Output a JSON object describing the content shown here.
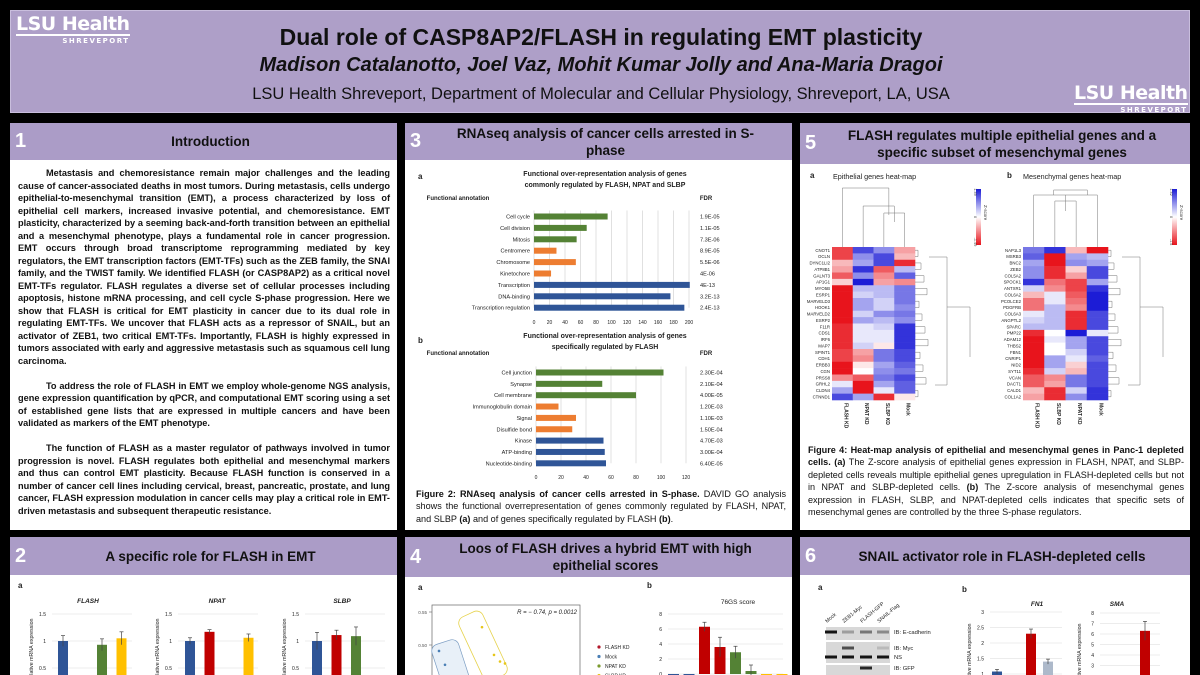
{
  "header": {
    "title": "Dual role of CASP8AP2/FLASH in regulating EMT plasticity",
    "first_author": "Madison Catalanotto",
    "other_authors": ", Joel Vaz, Mohit Kumar Jolly and Ana-Maria Dragoi",
    "affiliation": "LSU Health Shreveport, Department of Molecular and Cellular Physiology, Shreveport, LA, USA",
    "logo_text": "LSU Health",
    "logo_sub": "SHREVEPORT"
  },
  "s1": {
    "num": "1",
    "title": "Introduction",
    "paragraphs": [
      "Metastasis and chemoresistance remain major challenges and the leading cause of cancer-associated deaths in most tumors. During metastasis, cells undergo epithelial-to-mesenchymal transition (EMT), a process characterized by loss of epithelial cell markers, increased invasive potential, and chemoresistance. EMT plasticity, characterized by a seeming back-and-forth transition between an epithelial and a mesenchymal phenotype, plays a fundamental role in cancer progression. EMT occurs through broad transcriptome reprogramming mediated by key regulators, the EMT transcription factors (EMT-TFs) such as the ZEB family, the SNAI family, and the TWIST family. We identified FLASH (or CASP8AP2) as a critical novel EMT-TFs regulator. FLASH regulates a diverse set of cellular processes including apoptosis, histone mRNA processing, and cell cycle S-phase progression. Here we show that FLASH is critical for EMT plasticity in cancer due to its dual role in regulating EMT-TFs.  We uncover that FLASH acts as a repressor of SNAIL, but an activator of ZEB1, two critical EMT-TFs. Importantly, FLASH is highly expressed in tumors associated with early and aggressive metastasis such as squamous cell lung carcinoma.",
      "To address the role of FLASH in EMT we employ whole-genome NGS analysis, gene expression quantification by qPCR, and computational EMT scoring using a set of established gene lists that are expressed in multiple cancers and have been validated as markers of the EMT phenotype.",
      "The function of FLASH as a master regulator of pathways involved in tumor progression is novel. FLASH regulates both epithelial and mesenchymal markers and thus can control EMT plasticity. Because FLASH function is conserved in a number of cancer cell lines including cervical, breast, pancreatic, prostate, and lung cancer, FLASH expression modulation in cancer cells may play a critical role in EMT-driven metastasis and subsequent therapeutic resistance."
    ]
  },
  "s2": {
    "num": "2",
    "title": "A specific role for FLASH in EMT",
    "panel_a": "a"
  },
  "s3": {
    "num": "3",
    "title": "RNAseq analysis of cancer cells arrested in S-phase",
    "panel_a": "a",
    "panel_b": "b",
    "caption": [
      "Figure 2: RNAseq analysis of cancer cells arrested in S-phase.",
      " DAVID GO analysis shows the functional overrepresentation of genes commonly regulated by FLASH, NPAT, and SLBP ",
      "(a)",
      " and of genes specifically regulated by FLASH ",
      "(b)",
      "."
    ]
  },
  "s4": {
    "num": "4",
    "title": "Loos of FLASH drives a hybrid EMT with high epithelial scores",
    "panel_a": "a",
    "panel_b": "b"
  },
  "s5": {
    "num": "5",
    "title": "FLASH regulates multiple epithelial genes and a specific subset of mesenchymal genes",
    "panel_a": "a",
    "panel_b": "b",
    "caption": [
      "Figure 4: Heat-map analysis of epithelial and mesenchymal genes in Panc-1 depleted cells.",
      " ",
      "(a)",
      " The Z-score analysis of epithelial genes expression in FLASH, NPAT, and SLBP-depleted cells reveals multiple epithelial genes upregulation in FLASH-depleted cells but not in NPAT and SLBP-depleted cells. ",
      "(b)",
      " The Z-score analysis of mesenchymal genes expression in FLASH, SLBP, and NPAT-depleted cells indicates that specific sets of mesenchymal genes are controlled by the three S-phase regulators."
    ]
  },
  "s6": {
    "num": "6",
    "title": "SNAIL activator role in FLASH-depleted cells",
    "panel_a": "a",
    "panel_b": "b",
    "blot": {
      "lanes": [
        "Mock",
        "ZEB1-Myc",
        "FLASH-GFP",
        "SNAIL-Flag"
      ],
      "labels": [
        "IB: E-cadherin",
        "IB: Myc",
        "NS",
        "IB: GFP"
      ]
    }
  },
  "colors": {
    "blue": "#2f5597",
    "red": "#c00000",
    "green": "#548235",
    "yellow": "#ffc000",
    "orange": "#ed7d31",
    "lightblue": "#adb9ca",
    "hm_neg": "#e8141c",
    "hm_pos": "#1c1cd6"
  },
  "chart_data": [
    {
      "id": "fig2a",
      "type": "bar",
      "orientation": "horizontal",
      "title": [
        "Functional over-representation analysis of genes",
        "commonly regulated by FLASH, NPAT and SLBP"
      ],
      "ylabel": "Functional annotation",
      "fdr_label": "FDR",
      "categories": [
        "Cell cycle",
        "Cell division",
        "Mitosis",
        "Centromere",
        "Chromosome",
        "Kinetochore",
        "Transcription",
        "DNA-binding",
        "Transcription regulation"
      ],
      "values": [
        95,
        68,
        55,
        29,
        54,
        22,
        201,
        176,
        194
      ],
      "groups": [
        "green",
        "green",
        "green",
        "orange",
        "orange",
        "orange",
        "blue",
        "blue",
        "blue"
      ],
      "fdr": [
        "1.9E-05",
        "1.1E-05",
        "7.3E-06",
        "8.9E-05",
        "5.5E-06",
        "4E-06",
        "4E-13",
        "3.2E-13",
        "2.4E-13"
      ],
      "xlim": [
        0,
        200
      ],
      "xticks": [
        "0",
        "20",
        "40",
        "60",
        "80",
        "100",
        "120",
        "140",
        "160",
        "180",
        "200"
      ],
      "grid": true
    },
    {
      "id": "fig2b",
      "type": "bar",
      "orientation": "horizontal",
      "title": [
        "Functional over-representation analysis of genes",
        "specifically regulated by FLASH"
      ],
      "ylabel": "Functional annotation",
      "fdr_label": "FDR",
      "categories": [
        "Cell junction",
        "Synapse",
        "Cell membrane",
        "Immunoglobulin domain",
        "Signal",
        "Disulfide bond",
        "Kinase",
        "ATP-binding",
        "Nucleotide-binding"
      ],
      "values": [
        102,
        53,
        80,
        18,
        32,
        29,
        54,
        55,
        56
      ],
      "groups": [
        "green",
        "green",
        "green",
        "orange",
        "orange",
        "orange",
        "blue",
        "blue",
        "blue"
      ],
      "fdr": [
        "2.30E-04",
        "2.10E-04",
        "4.00E-05",
        "1.20E-03",
        "1.10E-03",
        "1.50E-04",
        "4.70E-03",
        "3.00E-04",
        "6.40E-05"
      ],
      "xlim": [
        0,
        120
      ],
      "xticks": [
        "0",
        "20",
        "40",
        "60",
        "80",
        "100",
        "120"
      ],
      "grid": true
    },
    {
      "id": "fig1_flash",
      "type": "bar",
      "title": "FLASH",
      "ylabel": "Relative mRNA expression",
      "yticks": [
        "1.5",
        "1",
        "0.5"
      ],
      "ylim": [
        0,
        1.5
      ],
      "series": [
        {
          "color": "blue",
          "value": 1.0,
          "err": 0.1
        },
        {
          "color": "red",
          "value": null
        },
        {
          "color": "green",
          "value": 0.93,
          "err": 0.11
        },
        {
          "color": "yellow",
          "value": 1.05,
          "err": 0.12
        }
      ]
    },
    {
      "id": "fig1_npat",
      "type": "bar",
      "title": "NPAT",
      "ylabel": "Relative mRNA expression",
      "yticks": [
        "1.5",
        "1",
        "0.5"
      ],
      "ylim": [
        0,
        1.5
      ],
      "series": [
        {
          "color": "blue",
          "value": 1.0,
          "err": 0.06
        },
        {
          "color": "red",
          "value": 1.17,
          "err": 0.04
        },
        {
          "color": "green",
          "value": null
        },
        {
          "color": "yellow",
          "value": 1.06,
          "err": 0.07
        }
      ]
    },
    {
      "id": "fig1_slbp",
      "type": "bar",
      "title": "SLBP",
      "ylabel": "Relative mRNA expression",
      "yticks": [
        "1.5",
        "1",
        "0.5"
      ],
      "ylim": [
        0,
        1.5
      ],
      "series": [
        {
          "color": "blue",
          "value": 1.0,
          "err": 0.16
        },
        {
          "color": "red",
          "value": 1.11,
          "err": 0.09
        },
        {
          "color": "green",
          "value": 1.09,
          "err": 0.17
        },
        {
          "color": "yellow",
          "value": null
        }
      ]
    },
    {
      "id": "fig3a",
      "type": "scatter",
      "annotation": "R = − 0.74, p = 0.0012",
      "yticks": [
        "0.55",
        "0.50"
      ],
      "legend": [
        {
          "label": "FLASH KD",
          "color": "#b2182b"
        },
        {
          "label": "Mock",
          "color": "#4a7fb5"
        },
        {
          "label": "NPAT KD",
          "color": "#7a9a2e"
        },
        {
          "label": "SLBP KD",
          "color": "#e6c619"
        }
      ],
      "points": [
        {
          "g": 1,
          "y": 0.491
        },
        {
          "g": 1,
          "y": 0.47
        },
        {
          "g": 3,
          "y": 0.527
        },
        {
          "g": 3,
          "y": 0.485
        },
        {
          "g": 3,
          "y": 0.475
        },
        {
          "g": 3,
          "y": 0.472
        }
      ]
    },
    {
      "id": "fig3b",
      "type": "bar",
      "title": "76GS score",
      "yticks": [
        "8",
        "6",
        "4",
        "2",
        "0"
      ],
      "ylim": [
        0,
        8
      ],
      "series": [
        {
          "color": "blue",
          "value": 0
        },
        {
          "color": "blue",
          "value": 0
        },
        {
          "color": "red",
          "value": 6.3,
          "err": 0.6
        },
        {
          "color": "red",
          "value": 3.6,
          "err": 1.3
        },
        {
          "color": "green",
          "value": 2.9,
          "err": 0.8
        },
        {
          "color": "green",
          "value": 0.4,
          "err": 0.8
        },
        {
          "color": "yellow",
          "value": 0
        },
        {
          "color": "yellow",
          "value": 0
        }
      ]
    },
    {
      "id": "fig4a",
      "type": "heatmap",
      "title": "Epithelial genes heat-map",
      "scale_label": "Z-score",
      "scale_ticks": [
        "1.49",
        "0",
        "-1.49"
      ],
      "columns": [
        "FLASH KD",
        "NPAT KD",
        "SLBP KD",
        "Mock"
      ],
      "rows": [
        "CNOT1",
        "OCLN",
        "DYNC1LI2",
        "ATP8B1",
        "GALNT3",
        "AP1G1",
        "MYO5B",
        "ESRP1",
        "MARVELD3",
        "HOOK1",
        "MARVELD2",
        "ESRP2",
        "F11R",
        "CDS1",
        "IRF6",
        "MAP7",
        "SPINT1",
        "CDH1",
        "ERBB3",
        "CGN",
        "PRSS8",
        "GRHL2",
        "CLDN4",
        "CTNND1"
      ],
      "values": [
        [
          -0.8,
          0.8,
          0.5,
          -0.4
        ],
        [
          -0.8,
          0.5,
          0.8,
          -0.3
        ],
        [
          -0.3,
          0.4,
          0.8,
          -0.9
        ],
        [
          -0.4,
          0.9,
          -0.7,
          0.3
        ],
        [
          -0.7,
          0.5,
          -0.5,
          0.7
        ],
        [
          -0.2,
          1,
          -0.4,
          -0.5
        ],
        [
          -1,
          0.3,
          0.3,
          0.6
        ],
        [
          -1,
          0.2,
          0.3,
          0.6
        ],
        [
          -1,
          0.4,
          0.2,
          0.6
        ],
        [
          -1,
          0.4,
          0.2,
          0.5
        ],
        [
          -1,
          0.2,
          0.5,
          0.6
        ],
        [
          -1,
          0.4,
          0.3,
          0.5
        ],
        [
          -0.9,
          0.1,
          0.2,
          0.9
        ],
        [
          -0.9,
          0.1,
          0.1,
          0.9
        ],
        [
          -0.9,
          0.1,
          0.1,
          0.9
        ],
        [
          -0.9,
          0.2,
          -0.1,
          0.9
        ],
        [
          -0.8,
          -0.4,
          0.6,
          0.8
        ],
        [
          -0.8,
          -0.5,
          0.6,
          0.8
        ],
        [
          -1,
          -0.1,
          0.4,
          0.7
        ],
        [
          -1,
          0,
          0.5,
          0.6
        ],
        [
          -0.5,
          -0.7,
          0.6,
          0.8
        ],
        [
          0.1,
          -1,
          0.4,
          0.7
        ],
        [
          0.4,
          -1,
          0.1,
          0.7
        ],
        [
          0.8,
          0.4,
          -0.9,
          -0.1
        ]
      ]
    },
    {
      "id": "fig4b",
      "type": "heatmap",
      "title": "Mesenchymal genes heat-map",
      "scale_label": "Z-score",
      "scale_ticks": [
        "1.42",
        "0",
        "-1.5"
      ],
      "columns": [
        "FLASH KD",
        "SLBP KD",
        "NPAT KD",
        "Mock"
      ],
      "rows": [
        "NAP1L3",
        "MSRB3",
        "BNC2",
        "ZEB2",
        "COL5A2",
        "SPOCK1",
        "ANTXR1",
        "COL6A2",
        "PCOLCE2",
        "PDGFRB",
        "COL6A3",
        "ANGPTL2",
        "SPARC",
        "PMP22",
        "ADAM12",
        "THBS2",
        "FBN1",
        "CNRIP1",
        "NID2",
        "SYT11",
        "VCAN",
        "DACT1",
        "CALD1",
        "COL1A2"
      ],
      "values": [
        [
          0.6,
          0.9,
          -0.3,
          -1
        ],
        [
          0.7,
          -1,
          0.4,
          0.3
        ],
        [
          0.4,
          -1,
          0.5,
          0.4
        ],
        [
          0.5,
          -0.9,
          -0.2,
          0.8
        ],
        [
          0.5,
          -0.9,
          -0.4,
          0.8
        ],
        [
          0.9,
          -0.6,
          -0.8,
          0.4
        ],
        [
          0.2,
          -0.5,
          -0.8,
          0.9
        ],
        [
          -0.3,
          0.1,
          -0.7,
          1
        ],
        [
          -0.6,
          0.1,
          -0.6,
          1
        ],
        [
          -0.6,
          0.3,
          -0.5,
          1
        ],
        [
          0.1,
          0.3,
          -0.9,
          0.8
        ],
        [
          0.2,
          0.3,
          -0.9,
          0.8
        ],
        [
          0.3,
          0.3,
          -0.9,
          0.8
        ],
        [
          -0.9,
          0,
          1,
          0.1
        ],
        [
          -1,
          0.1,
          0.4,
          0.8
        ],
        [
          -1,
          0,
          0.4,
          0.8
        ],
        [
          -1,
          0,
          0.2,
          0.8
        ],
        [
          -1,
          0.4,
          0.1,
          0.7
        ],
        [
          -1,
          0.4,
          -0.2,
          0.8
        ],
        [
          -0.9,
          0.2,
          -0.3,
          0.8
        ],
        [
          -0.7,
          -0.5,
          0.6,
          0.8
        ],
        [
          -0.7,
          -0.4,
          0.6,
          0.8
        ],
        [
          -0.3,
          -0.9,
          0.2,
          0.9
        ],
        [
          -0.4,
          -0.9,
          0.5,
          0.9
        ]
      ]
    },
    {
      "id": "fig5_fn1",
      "type": "bar",
      "title": "FN1",
      "ylabel": "Relative mRNA expression",
      "yticks": [
        "3",
        "2.5",
        "2",
        "1.5",
        "1"
      ],
      "ylim": [
        0,
        3
      ],
      "series": [
        {
          "color": "blue",
          "value": 1.08,
          "err": 0.07
        },
        {
          "color": "blue",
          "value": null
        },
        {
          "color": "red",
          "value": 2.3,
          "err": 0.15
        },
        {
          "color": "lightblue",
          "value": 1.4,
          "err": 0.08
        }
      ]
    },
    {
      "id": "fig5_sma",
      "type": "bar",
      "title": "SMA",
      "ylabel": "Relative mRNA expression",
      "yticks": [
        "8",
        "7",
        "6",
        "5",
        "4",
        "3"
      ],
      "ylim": [
        0,
        8
      ],
      "series": [
        {
          "color": "red",
          "value": 6.3,
          "err": 0.9
        }
      ]
    }
  ]
}
